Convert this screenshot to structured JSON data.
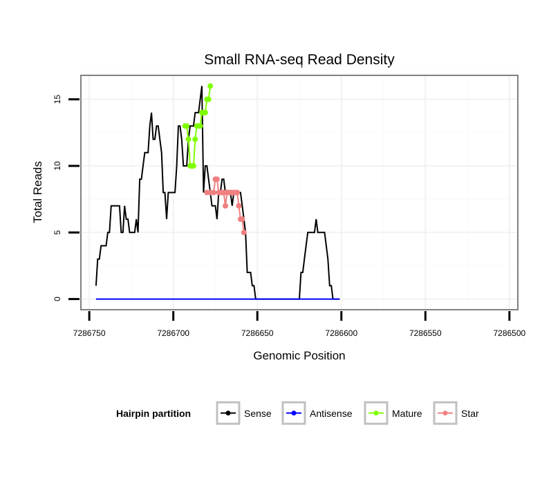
{
  "chart_data": {
    "type": "line",
    "title": "Small RNA-seq Read Density",
    "xlabel": "Genomic Position",
    "ylabel": "Total Reads",
    "xlim": [
      7286755,
      7286495
    ],
    "ylim": [
      -0.8,
      16.8
    ],
    "x_reversed": true,
    "grid": true,
    "x_ticks": [
      7286750,
      7286700,
      7286650,
      7286600,
      7286550,
      7286500
    ],
    "x_tick_labels": [
      "7286750",
      "7286700",
      "7286650",
      "7286600",
      "7286550",
      "7286500"
    ],
    "y_ticks": [
      0,
      5,
      10,
      15
    ],
    "y_tick_labels": [
      "0",
      "5",
      "10",
      "15"
    ],
    "legend": {
      "title": "Hairpin partition",
      "position": "bottom",
      "entries": [
        "Sense",
        "Antisense",
        "Mature",
        "Star"
      ]
    },
    "colors": {
      "Sense": "#000000",
      "Antisense": "#0000ff",
      "Mature": "#7fff00",
      "Star": "#f08080"
    },
    "series": [
      {
        "name": "Sense",
        "points": [
          [
            7286746,
            1
          ],
          [
            7286745,
            3
          ],
          [
            7286744,
            3
          ],
          [
            7286743,
            4
          ],
          [
            7286742,
            4
          ],
          [
            7286740,
            4
          ],
          [
            7286739,
            5
          ],
          [
            7286738,
            5
          ],
          [
            7286737,
            7
          ],
          [
            7286736,
            7
          ],
          [
            7286732,
            7
          ],
          [
            7286731,
            5
          ],
          [
            7286730,
            5
          ],
          [
            7286729,
            7
          ],
          [
            7286728,
            6
          ],
          [
            7286727,
            6
          ],
          [
            7286726,
            5
          ],
          [
            7286725,
            5
          ],
          [
            7286723,
            5
          ],
          [
            7286722,
            6
          ],
          [
            7286721,
            5
          ],
          [
            7286720,
            9
          ],
          [
            7286719,
            9
          ],
          [
            7286718,
            10
          ],
          [
            7286717,
            11
          ],
          [
            7286715,
            11
          ],
          [
            7286714,
            13
          ],
          [
            7286713,
            14
          ],
          [
            7286712,
            12
          ],
          [
            7286711,
            12
          ],
          [
            7286710,
            13
          ],
          [
            7286709,
            13
          ],
          [
            7286707,
            11
          ],
          [
            7286706,
            8
          ],
          [
            7286705,
            8
          ],
          [
            7286704,
            6
          ],
          [
            7286703,
            8
          ],
          [
            7286702,
            8
          ],
          [
            7286699,
            8
          ],
          [
            7286698,
            10
          ],
          [
            7286697,
            13
          ],
          [
            7286696,
            13
          ],
          [
            7286695,
            12
          ],
          [
            7286694,
            10
          ],
          [
            7286693,
            10
          ],
          [
            7286692,
            10
          ],
          [
            7286691,
            12
          ],
          [
            7286690,
            13
          ],
          [
            7286689,
            13
          ],
          [
            7286688,
            13
          ],
          [
            7286687,
            14
          ],
          [
            7286686,
            14
          ],
          [
            7286685,
            14
          ],
          [
            7286684,
            15
          ],
          [
            7286683,
            16
          ],
          [
            7286682,
            8
          ],
          [
            7286681,
            10
          ],
          [
            7286680,
            10
          ],
          [
            7286679,
            9
          ],
          [
            7286678,
            8
          ],
          [
            7286677,
            7
          ],
          [
            7286675,
            7
          ],
          [
            7286674,
            6
          ],
          [
            7286673,
            8
          ],
          [
            7286672,
            8
          ],
          [
            7286671,
            9
          ],
          [
            7286670,
            9
          ],
          [
            7286669,
            8
          ],
          [
            7286668,
            8
          ],
          [
            7286666,
            8
          ],
          [
            7286665,
            7
          ],
          [
            7286664,
            8
          ],
          [
            7286660,
            8
          ],
          [
            7286659,
            7
          ],
          [
            7286658,
            6
          ],
          [
            7286657,
            5
          ],
          [
            7286656,
            2
          ],
          [
            7286654,
            2
          ],
          [
            7286653,
            1
          ],
          [
            7286652,
            1
          ],
          [
            7286651,
            0
          ],
          [
            7286625,
            0
          ],
          [
            7286624,
            2
          ],
          [
            7286623,
            2
          ],
          [
            7286622,
            3
          ],
          [
            7286621,
            4
          ],
          [
            7286620,
            5
          ],
          [
            7286616,
            5
          ],
          [
            7286615,
            6
          ],
          [
            7286614,
            5
          ],
          [
            7286610,
            5
          ],
          [
            7286609,
            4
          ],
          [
            7286608,
            3
          ],
          [
            7286607,
            1
          ],
          [
            7286606,
            1
          ],
          [
            7286605,
            0
          ],
          [
            7286601,
            0
          ]
        ]
      },
      {
        "name": "Antisense",
        "points": [
          [
            7286746,
            0
          ],
          [
            7286601,
            0
          ]
        ]
      },
      {
        "name": "Mature",
        "points": [
          [
            7286693,
            13
          ],
          [
            7286692,
            13
          ],
          [
            7286691,
            12
          ],
          [
            7286690,
            10
          ],
          [
            7286689,
            10
          ],
          [
            7286688,
            10
          ],
          [
            7286687,
            12
          ],
          [
            7286686,
            13
          ],
          [
            7286685,
            13
          ],
          [
            7286684,
            13
          ],
          [
            7286683,
            14
          ],
          [
            7286682,
            14
          ],
          [
            7286681,
            14
          ],
          [
            7286680,
            15
          ],
          [
            7286679,
            15
          ],
          [
            7286678,
            16
          ]
        ]
      },
      {
        "name": "Star",
        "points": [
          [
            7286680,
            8
          ],
          [
            7286678,
            8
          ],
          [
            7286676,
            8
          ],
          [
            7286675,
            9
          ],
          [
            7286674,
            9
          ],
          [
            7286673,
            8
          ],
          [
            7286672,
            8
          ],
          [
            7286671,
            8
          ],
          [
            7286670,
            8
          ],
          [
            7286669,
            7
          ],
          [
            7286668,
            8
          ],
          [
            7286667,
            8
          ],
          [
            7286666,
            8
          ],
          [
            7286665,
            8
          ],
          [
            7286664,
            8
          ],
          [
            7286663,
            8
          ],
          [
            7286662,
            8
          ],
          [
            7286661,
            7
          ],
          [
            7286660,
            6
          ],
          [
            7286659,
            6
          ],
          [
            7286658,
            5
          ]
        ]
      }
    ]
  }
}
